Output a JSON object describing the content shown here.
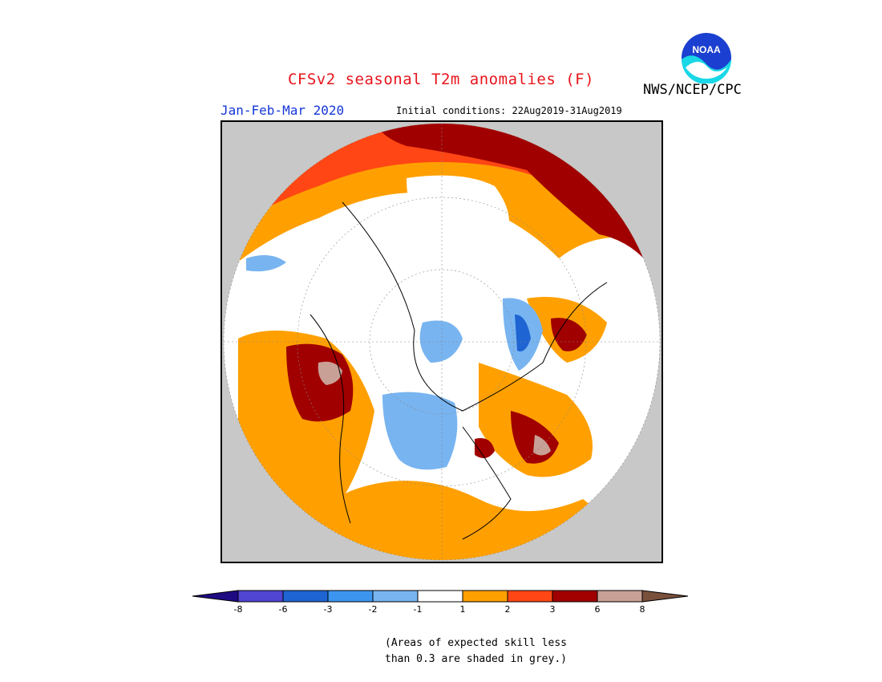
{
  "header": {
    "title": "CFSv2 seasonal T2m anomalies (F)",
    "agency": "NWS/NCEP/CPC",
    "logo_text": "NOAA",
    "period": "Jan-Feb-Mar 2020",
    "initial_conditions": "Initial conditions: 22Aug2019-31Aug2019"
  },
  "colors": {
    "title": "#e8141c",
    "period": "#1436d8",
    "land_mask": "#c8c8c8"
  },
  "legend": {
    "bins": [
      {
        "color": "#1e0a82"
      },
      {
        "color": "#5044d2"
      },
      {
        "color": "#1e64d2"
      },
      {
        "color": "#3c96f0"
      },
      {
        "color": "#78b4f0"
      },
      {
        "color": "#ffffff"
      },
      {
        "color": "#ffa000"
      },
      {
        "color": "#ff4614"
      },
      {
        "color": "#a00000"
      },
      {
        "color": "#c8a096"
      },
      {
        "color": "#78503c"
      }
    ],
    "ticks": [
      "-8",
      "-6",
      "-3",
      "-2",
      "-1",
      "1",
      "2",
      "3",
      "6",
      "8"
    ]
  },
  "note": {
    "line1": "(Areas of expected skill less",
    "line2": "than 0.3 are shaded in grey.)"
  }
}
